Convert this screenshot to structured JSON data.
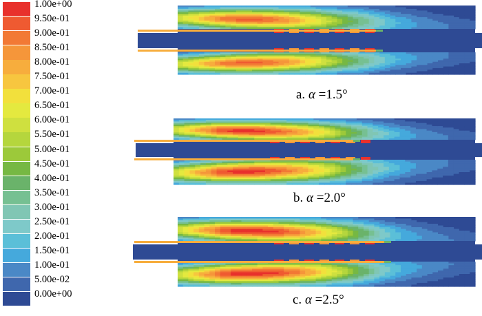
{
  "legend": {
    "labels": [
      "1.00e+00",
      "9.50e-01",
      "9.00e-01",
      "8.50e-01",
      "8.00e-01",
      "7.50e-01",
      "7.00e-01",
      "6.50e-01",
      "6.00e-01",
      "5.50e-01",
      "5.00e-01",
      "4.50e-01",
      "4.00e-01",
      "3.50e-01",
      "3.00e-01",
      "2.50e-01",
      "2.00e-01",
      "1.50e-01",
      "1.00e-01",
      "5.00e-02",
      "0.00e+00"
    ],
    "colors": [
      "#e8312c",
      "#ef5a31",
      "#f27935",
      "#f5963a",
      "#f7ad3d",
      "#f7c63f",
      "#f2e03c",
      "#e4e93f",
      "#cfe03f",
      "#b5d63d",
      "#9cc93a",
      "#76b843",
      "#6ab36a",
      "#76c092",
      "#80c6b4",
      "#7ec9c9",
      "#5bbfd8",
      "#45a9dc",
      "#4a88c6",
      "#3f67ad",
      "#2e4a94"
    ]
  },
  "panels": [
    {
      "letter": "a.",
      "symbol": "α",
      "value": "=1.5°",
      "profile": [
        10,
        12,
        14,
        15,
        15,
        14,
        12.5,
        10.5,
        8,
        6,
        4.5,
        3.5,
        2.8,
        2.3,
        2,
        1.8
      ]
    },
    {
      "letter": "b.",
      "symbol": "α",
      "value": "=2.0°",
      "profile": [
        10,
        12.5,
        15,
        16,
        16,
        15,
        13.5,
        11.5,
        9,
        6.5,
        4.8,
        3.6,
        2.8,
        2.3,
        2,
        1.8
      ]
    },
    {
      "letter": "c.",
      "symbol": "α",
      "value": "=2.5°",
      "profile": [
        10,
        12.5,
        15,
        16.5,
        16.5,
        15.5,
        14,
        12,
        9.5,
        7,
        5,
        3.8,
        3,
        2.4,
        2,
        1.8
      ]
    }
  ]
}
